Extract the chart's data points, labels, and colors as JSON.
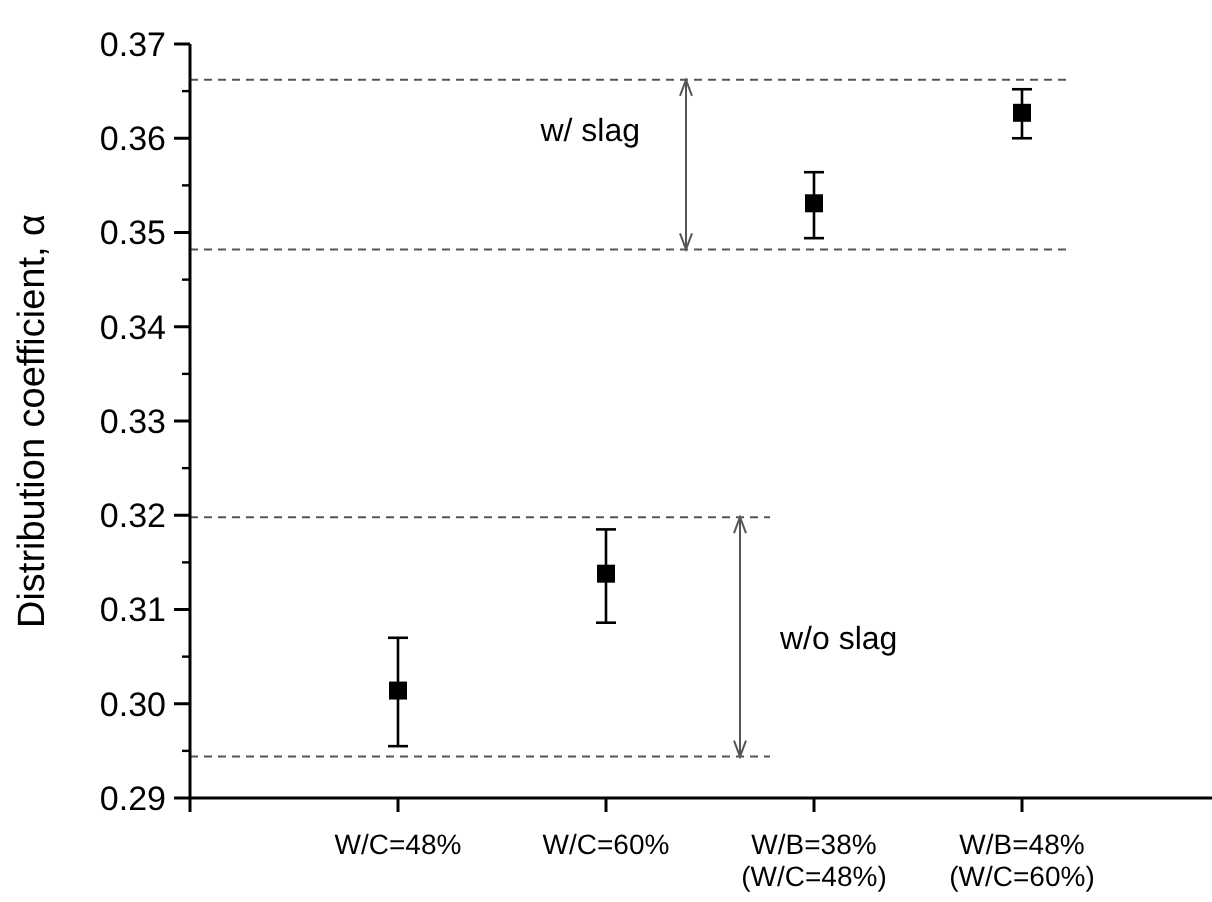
{
  "chart_data": {
    "type": "scatter",
    "ylabel": "Distribution coefficient, α",
    "categories": [
      "W/C=48%",
      "W/C=60%",
      "W/B=38%\n(W/C=48%)",
      "W/B=48%\n(W/C=60%)"
    ],
    "values": [
      0.3014,
      0.3138,
      0.3531,
      0.3627
    ],
    "errors": [
      [
        0.2955,
        0.307
      ],
      [
        0.3086,
        0.3185
      ],
      [
        0.3494,
        0.3564
      ],
      [
        0.36,
        0.3652
      ]
    ],
    "color": "#000000",
    "marker": "square",
    "grid": false,
    "ylim": [
      0.29,
      0.37
    ],
    "yticks": [
      0.29,
      {
        "value": 0.3,
        "label": "0.30"
      },
      0.31,
      0.32,
      0.33,
      0.34,
      0.35,
      0.36,
      0.37
    ],
    "ref_lines": [
      {
        "axis": "y",
        "value": 0.3662,
        "color": "#555555",
        "line_style": "dashed"
      },
      {
        "axis": "y",
        "value": 0.3482,
        "color": "#555555",
        "line_style": "dashed"
      },
      {
        "axis": "y",
        "value": 0.3198,
        "color": "#555555",
        "line_style": "dashed"
      },
      {
        "axis": "y",
        "value": 0.2944,
        "color": "#555555",
        "line_style": "dashed"
      }
    ],
    "annotations": [
      "w/ slag",
      "w/o slag"
    ]
  }
}
